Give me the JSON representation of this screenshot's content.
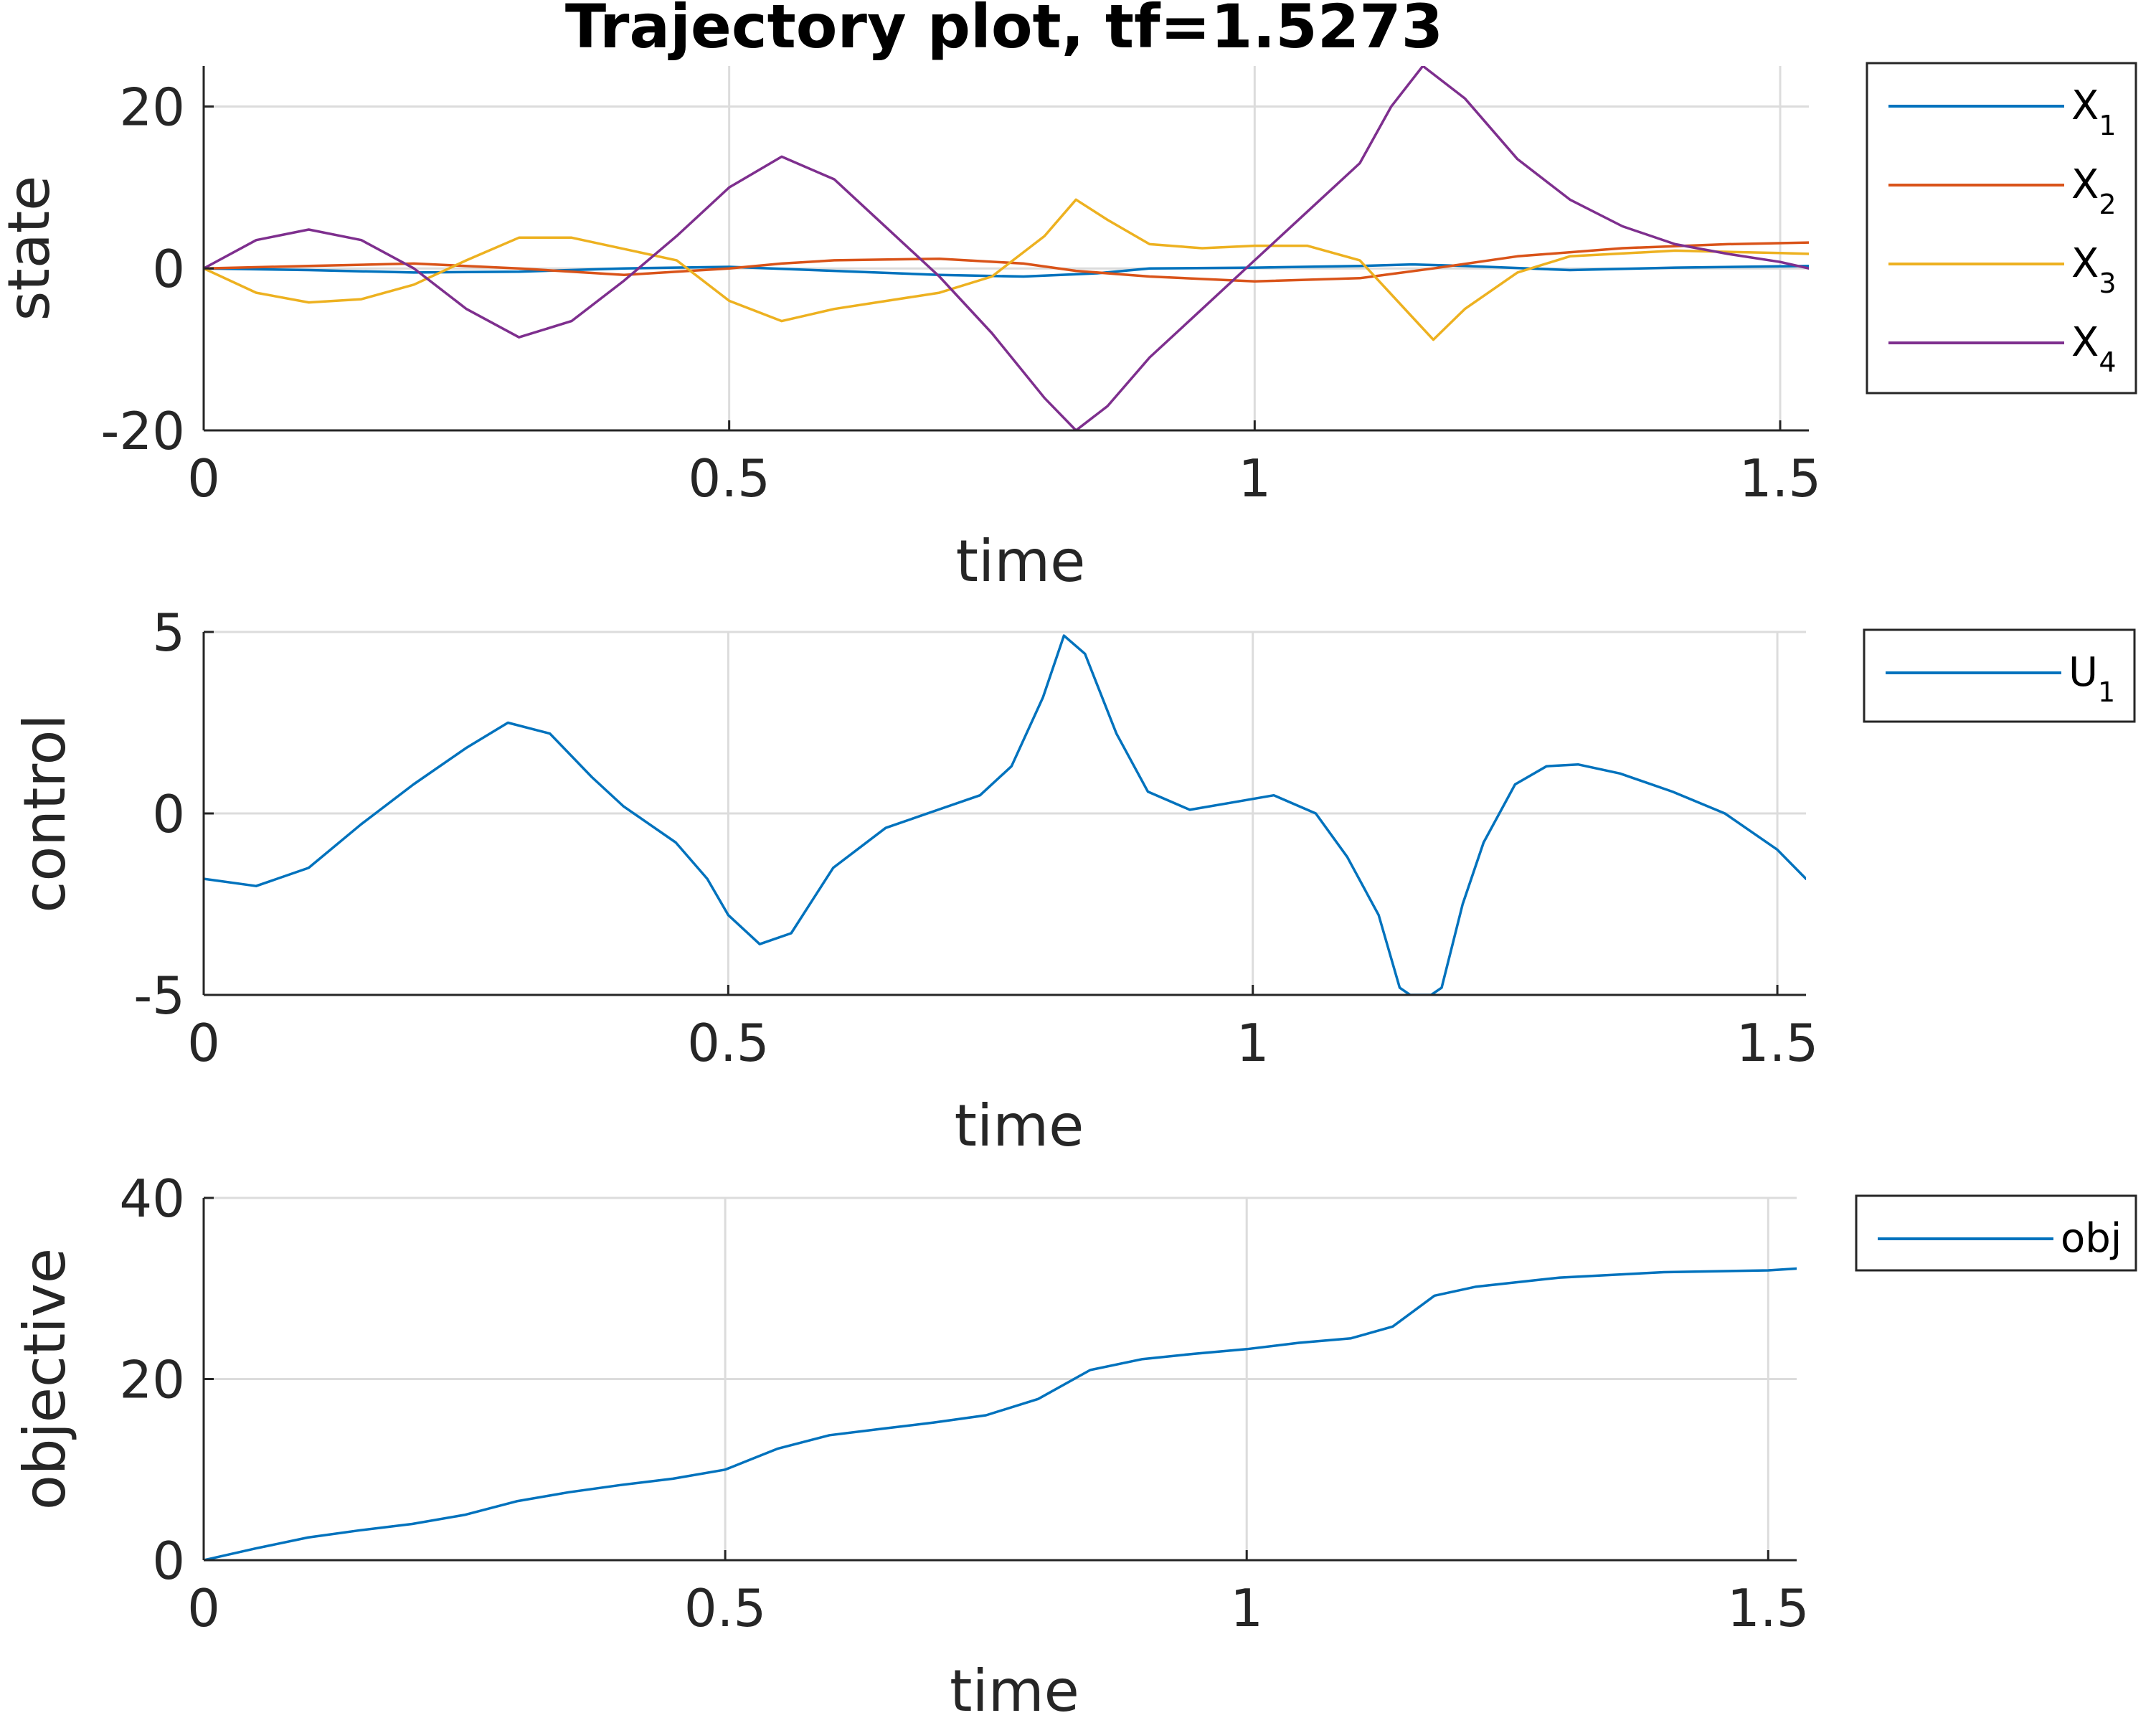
{
  "chart_data": [
    {
      "type": "line",
      "title": "Trajectory plot, tf=1.5273",
      "xlabel": "time",
      "ylabel": "state",
      "xlim": [
        0,
        1.5273
      ],
      "ylim": [
        -20,
        25
      ],
      "xticks": [
        0,
        0.5,
        1,
        1.5
      ],
      "xtick_labels": [
        "0",
        "0.5",
        "1",
        "1.5"
      ],
      "yticks": [
        -20,
        0,
        20
      ],
      "ytick_labels": [
        "-20",
        "0",
        "20"
      ],
      "grid": true,
      "legend_position": "outside-right",
      "series": [
        {
          "name": "X",
          "sub": "1",
          "color": "#0072bd",
          "x": [
            0,
            0.1,
            0.2,
            0.3,
            0.4,
            0.5,
            0.6,
            0.7,
            0.78,
            0.85,
            0.9,
            1.0,
            1.1,
            1.15,
            1.2,
            1.3,
            1.4,
            1.5273
          ],
          "y": [
            0,
            -0.2,
            -0.5,
            -0.4,
            0,
            0.2,
            -0.3,
            -0.8,
            -1.0,
            -0.6,
            0,
            0.1,
            0.3,
            0.5,
            0.3,
            -0.2,
            0.1,
            0.3
          ]
        },
        {
          "name": "X",
          "sub": "2",
          "color": "#d95319",
          "x": [
            0,
            0.1,
            0.2,
            0.3,
            0.4,
            0.5,
            0.55,
            0.6,
            0.7,
            0.78,
            0.83,
            0.9,
            1.0,
            1.1,
            1.17,
            1.25,
            1.35,
            1.45,
            1.5273
          ],
          "y": [
            0,
            0.3,
            0.6,
            0,
            -0.8,
            0,
            0.6,
            1.0,
            1.2,
            0.6,
            -0.3,
            -1.0,
            -1.6,
            -1.2,
            0,
            1.5,
            2.5,
            3.0,
            3.2
          ]
        },
        {
          "name": "X",
          "sub": "3",
          "color": "#edb120",
          "x": [
            0,
            0.05,
            0.1,
            0.15,
            0.2,
            0.25,
            0.3,
            0.35,
            0.45,
            0.5,
            0.55,
            0.6,
            0.7,
            0.75,
            0.8,
            0.83,
            0.86,
            0.9,
            0.95,
            1.0,
            1.05,
            1.1,
            1.15,
            1.17,
            1.2,
            1.25,
            1.3,
            1.4,
            1.5,
            1.5273
          ],
          "y": [
            0,
            -3,
            -4.2,
            -3.8,
            -2,
            1,
            3.8,
            3.8,
            1,
            -4,
            -6.5,
            -5,
            -3,
            -1,
            4,
            8.5,
            6,
            3,
            2.5,
            2.8,
            2.8,
            1,
            -6,
            -8.8,
            -5,
            -0.5,
            1.5,
            2.2,
            1.9,
            1.8
          ]
        },
        {
          "name": "X",
          "sub": "4",
          "color": "#7e2f8e",
          "x": [
            0,
            0.05,
            0.1,
            0.15,
            0.2,
            0.25,
            0.3,
            0.35,
            0.4,
            0.45,
            0.5,
            0.55,
            0.6,
            0.65,
            0.7,
            0.75,
            0.8,
            0.83,
            0.86,
            0.9,
            0.95,
            1.0,
            1.05,
            1.1,
            1.13,
            1.16,
            1.2,
            1.25,
            1.3,
            1.35,
            1.4,
            1.45,
            1.5,
            1.5273
          ],
          "y": [
            0,
            3.5,
            4.8,
            3.5,
            0,
            -5,
            -8.5,
            -6.5,
            -1.5,
            4,
            10,
            13.8,
            11,
            5,
            -1,
            -8,
            -16,
            -20,
            -17,
            -11,
            -5,
            1,
            7,
            13,
            20,
            25,
            21,
            13.5,
            8.5,
            5.2,
            3,
            1.8,
            0.8,
            0
          ]
        }
      ]
    },
    {
      "type": "line",
      "xlabel": "time",
      "ylabel": "control",
      "xlim": [
        0,
        1.5273
      ],
      "ylim": [
        -5,
        5
      ],
      "xticks": [
        0,
        0.5,
        1,
        1.5
      ],
      "xtick_labels": [
        "0",
        "0.5",
        "1",
        "1.5"
      ],
      "yticks": [
        -5,
        0,
        5
      ],
      "ytick_labels": [
        "-5",
        "0",
        "5"
      ],
      "grid": true,
      "legend_position": "outside-right",
      "series": [
        {
          "name": "U",
          "sub": "1",
          "color": "#0072bd",
          "x": [
            0,
            0.05,
            0.1,
            0.15,
            0.2,
            0.25,
            0.29,
            0.33,
            0.37,
            0.4,
            0.45,
            0.48,
            0.5,
            0.53,
            0.56,
            0.6,
            0.65,
            0.7,
            0.74,
            0.77,
            0.8,
            0.82,
            0.84,
            0.87,
            0.9,
            0.94,
            0.98,
            1.02,
            1.06,
            1.09,
            1.12,
            1.14,
            1.15,
            1.17,
            1.18,
            1.2,
            1.22,
            1.25,
            1.28,
            1.31,
            1.35,
            1.4,
            1.45,
            1.5,
            1.5273
          ],
          "y": [
            -1.8,
            -2.0,
            -1.5,
            -0.3,
            0.8,
            1.8,
            2.5,
            2.2,
            1.0,
            0.2,
            -0.8,
            -1.8,
            -2.8,
            -3.6,
            -3.3,
            -1.5,
            -0.4,
            0.1,
            0.5,
            1.3,
            3.2,
            4.9,
            4.4,
            2.2,
            0.6,
            0.1,
            0.3,
            0.5,
            0.0,
            -1.2,
            -2.8,
            -4.8,
            -5.0,
            -5.0,
            -4.8,
            -2.5,
            -0.8,
            0.8,
            1.3,
            1.35,
            1.1,
            0.6,
            0.0,
            -1.0,
            -1.8
          ]
        }
      ]
    },
    {
      "type": "line",
      "xlabel": "time",
      "ylabel": "objective",
      "xlim": [
        0,
        1.5273
      ],
      "ylim": [
        0,
        40
      ],
      "xticks": [
        0,
        0.5,
        1,
        1.5
      ],
      "xtick_labels": [
        "0",
        "0.5",
        "1",
        "1.5"
      ],
      "yticks": [
        0,
        20,
        40
      ],
      "ytick_labels": [
        "0",
        "20",
        "40"
      ],
      "grid": true,
      "legend_position": "outside-right",
      "series": [
        {
          "name": "obj",
          "sub": "",
          "color": "#0072bd",
          "x": [
            0,
            0.05,
            0.1,
            0.15,
            0.2,
            0.25,
            0.3,
            0.35,
            0.4,
            0.45,
            0.5,
            0.55,
            0.6,
            0.65,
            0.7,
            0.75,
            0.8,
            0.85,
            0.9,
            0.95,
            1.0,
            1.05,
            1.1,
            1.14,
            1.18,
            1.22,
            1.3,
            1.4,
            1.5,
            1.5273
          ],
          "y": [
            0,
            1.3,
            2.5,
            3.3,
            4.0,
            5.0,
            6.5,
            7.5,
            8.3,
            9.0,
            10.0,
            12.3,
            13.8,
            14.5,
            15.2,
            16.0,
            17.8,
            21.0,
            22.2,
            22.8,
            23.3,
            24.0,
            24.5,
            25.8,
            29.2,
            30.2,
            31.2,
            31.8,
            32.0,
            32.2
          ]
        }
      ]
    }
  ]
}
